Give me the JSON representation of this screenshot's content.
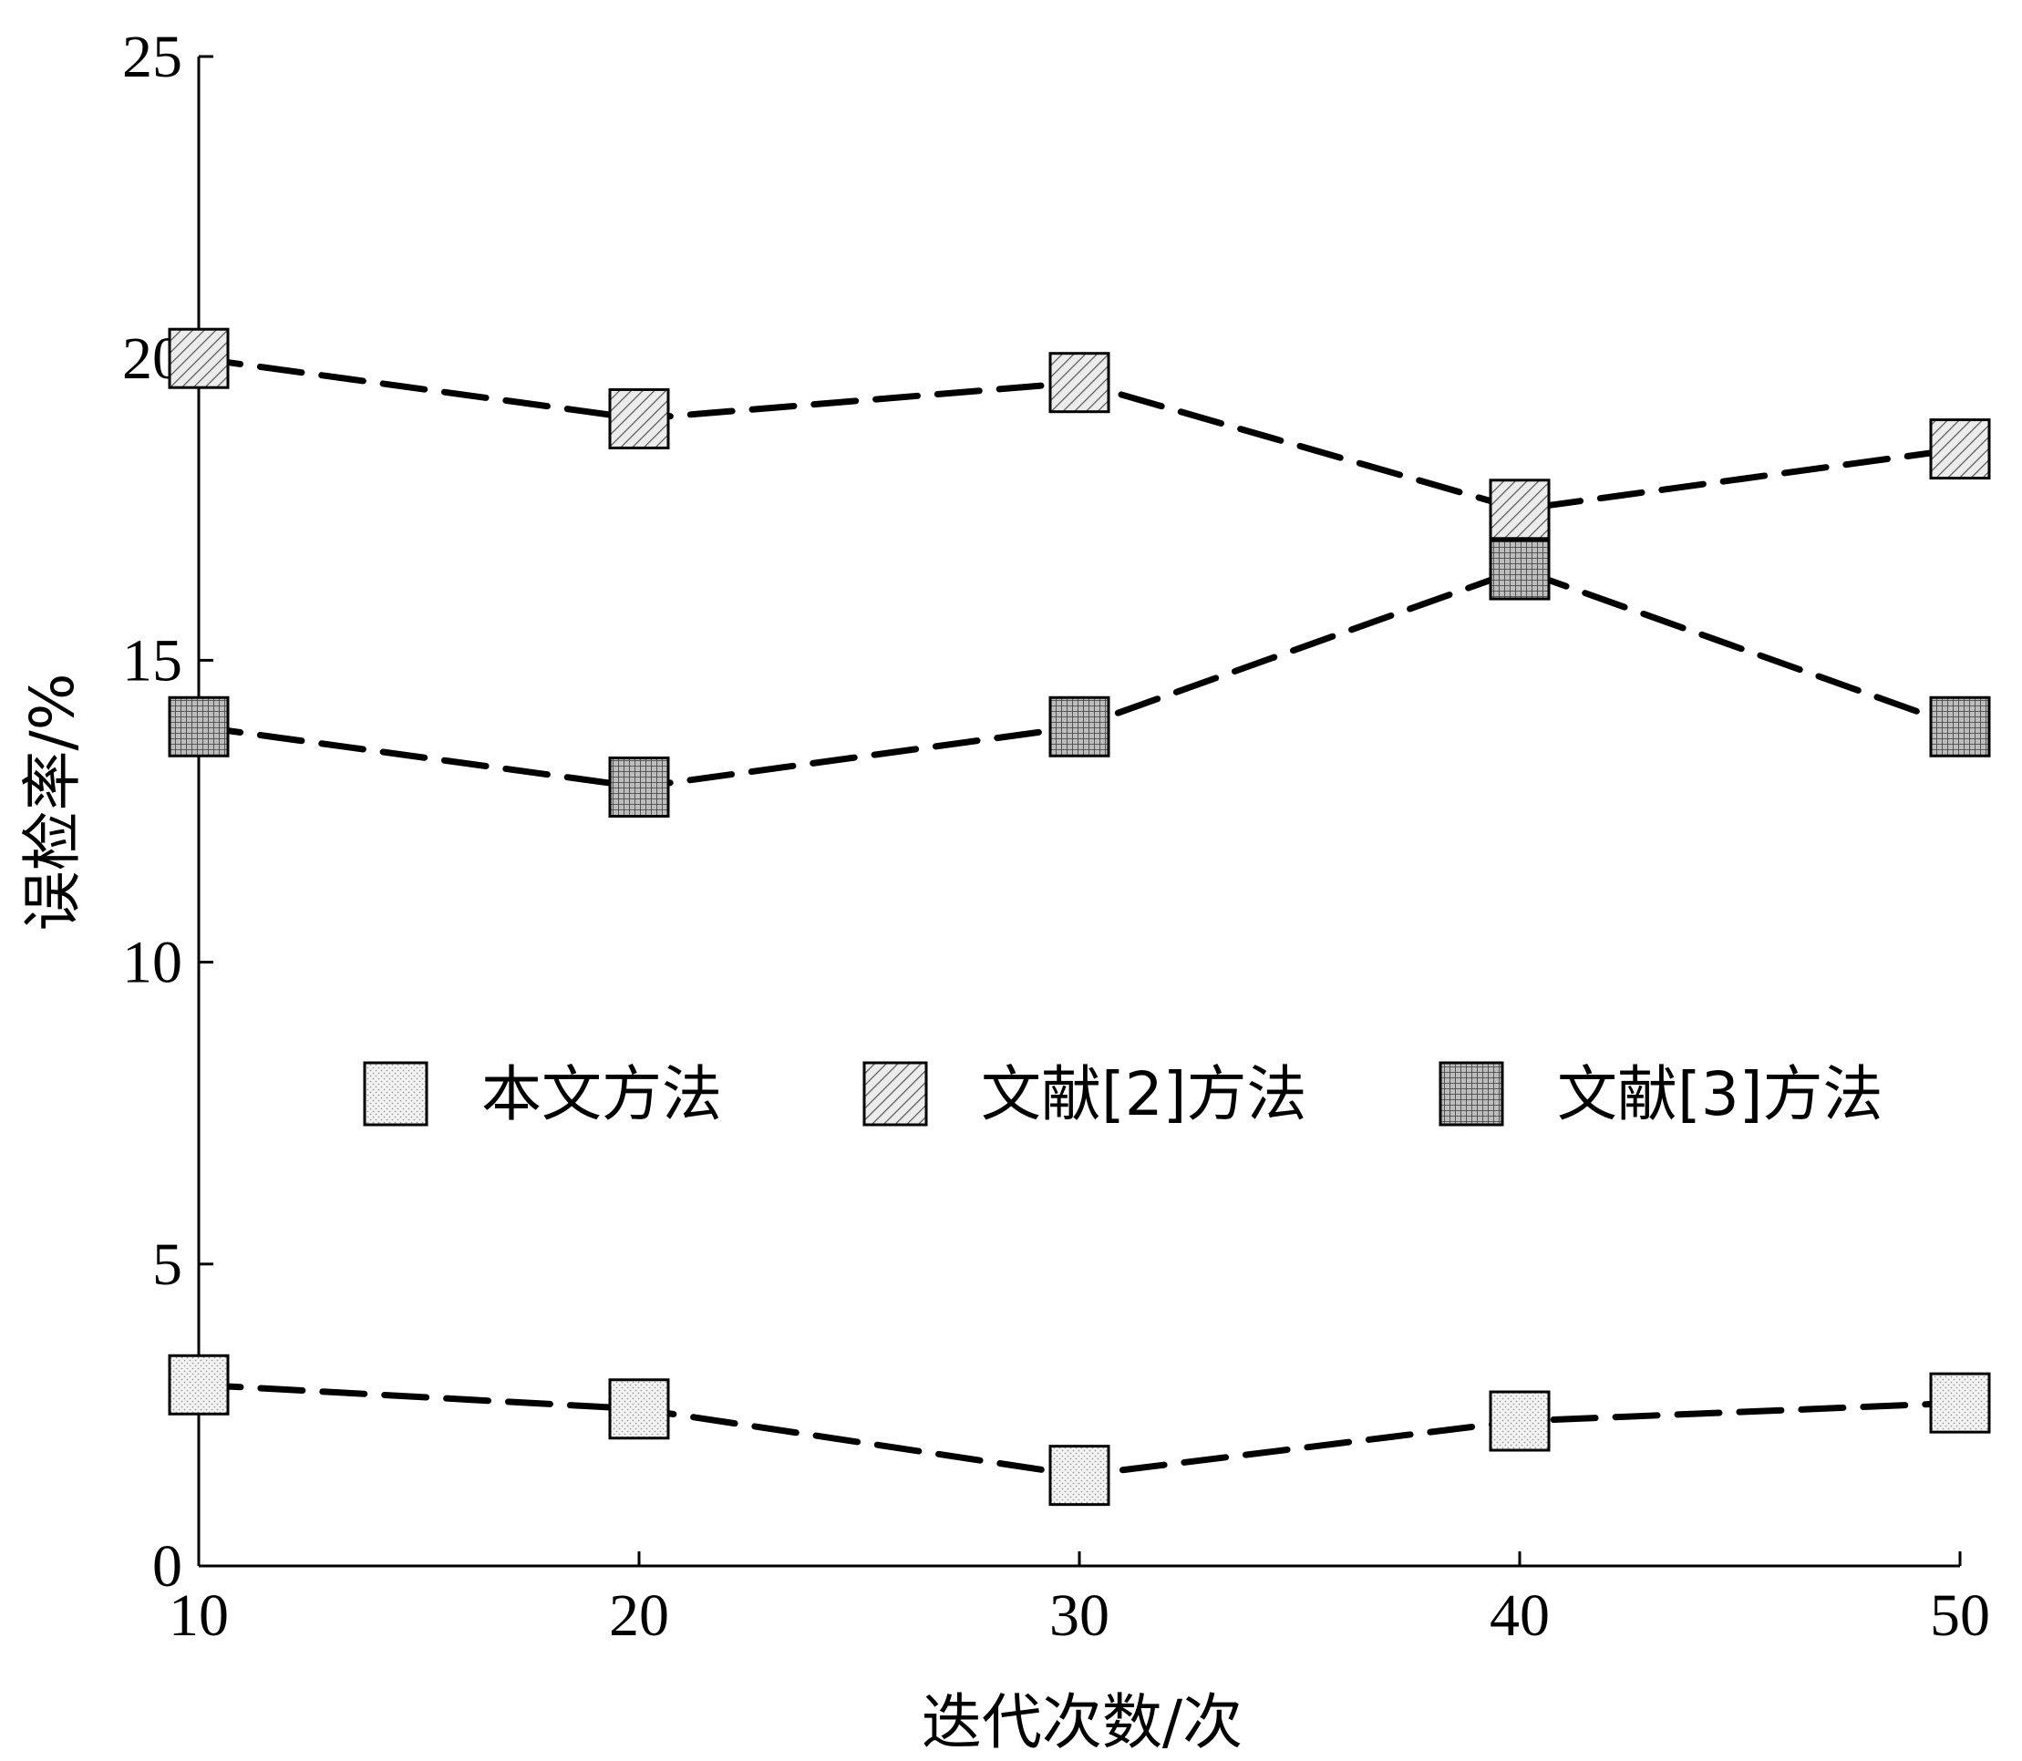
{
  "chart_data": {
    "type": "line",
    "title": "",
    "xlabel": "迭代次数/次",
    "ylabel": "误检率/%",
    "x": [
      10,
      20,
      30,
      40,
      50
    ],
    "xlim": [
      10,
      50
    ],
    "ylim": [
      0,
      25
    ],
    "xticks": [
      "10",
      "20",
      "30",
      "40",
      "50"
    ],
    "yticks": [
      "0",
      "5",
      "10",
      "15",
      "20",
      "25"
    ],
    "grid": false,
    "legend_position": "center",
    "series": [
      {
        "name": "本文方法",
        "values": [
          3.0,
          2.6,
          1.5,
          2.4,
          2.7
        ],
        "pattern": "dots"
      },
      {
        "name": "文献[2]方法",
        "values": [
          20.0,
          19.0,
          19.6,
          17.5,
          18.5
        ],
        "pattern": "hatch"
      },
      {
        "name": "文献[3]方法",
        "values": [
          13.9,
          12.9,
          13.9,
          16.5,
          13.9
        ],
        "pattern": "grid"
      }
    ]
  }
}
